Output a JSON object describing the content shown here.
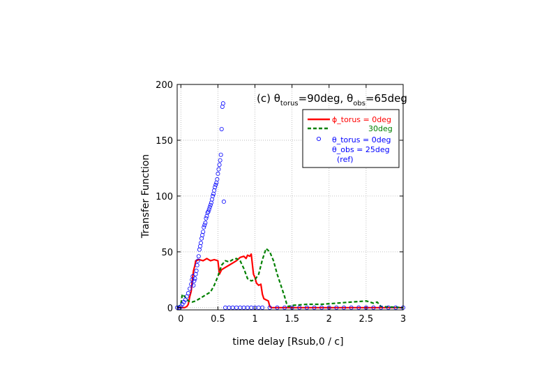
{
  "chart_data": {
    "type": "line",
    "title": {
      "prefix": "(c) ",
      "theta1": "θ",
      "sub1": "torus",
      "mid": "=90deg, ",
      "theta2": "θ",
      "sub2": "obs",
      "suffix": "=65deg"
    },
    "xlabel": "time delay [Rsub,0 / c]",
    "ylabel": "Transfer Function",
    "xlim": [
      -0.05,
      3.0
    ],
    "ylim": [
      -2,
      200
    ],
    "xticks": [
      "0",
      "0.5",
      "1",
      "1.5",
      "2",
      "2.5",
      "3"
    ],
    "yticks": [
      "0",
      "50",
      "100",
      "150",
      "200"
    ],
    "grid": true,
    "legend_position": "top-right",
    "legend": [
      {
        "label": "ϕ_torus = 0deg",
        "color": "#ff0000",
        "style": "solid"
      },
      {
        "label": "30deg",
        "color": "#008000",
        "style": "dashed"
      },
      {
        "label": "θ_torus = 0deg",
        "color": "#0000ff",
        "style": "circle"
      },
      {
        "label": "θ_obs = 25deg",
        "color": "#0000ff",
        "style": "text"
      },
      {
        "label": "(ref)",
        "color": "#0000ff",
        "style": "text"
      }
    ],
    "series": [
      {
        "name": "ϕ_torus = 0deg",
        "color": "#ff0000",
        "style": "solid",
        "x": [
          -0.05,
          0.0,
          0.05,
          0.08,
          0.1,
          0.12,
          0.14,
          0.15,
          0.17,
          0.19,
          0.2,
          0.25,
          0.3,
          0.35,
          0.4,
          0.45,
          0.5,
          0.52,
          0.55,
          0.6,
          0.65,
          0.7,
          0.75,
          0.8,
          0.85,
          0.88,
          0.9,
          0.93,
          0.95,
          0.98,
          1.0,
          1.02,
          1.05,
          1.08,
          1.1,
          1.12,
          1.15,
          1.18,
          1.2,
          1.22,
          1.5,
          2.0,
          2.5,
          3.0
        ],
        "y": [
          0,
          0,
          0,
          1,
          3,
          10,
          15,
          22,
          33,
          38,
          42,
          43,
          42,
          44,
          42,
          43,
          42,
          30,
          34,
          36,
          38,
          40,
          42,
          45,
          46,
          44,
          47,
          46,
          48,
          30,
          27,
          22,
          20,
          21,
          12,
          8,
          7,
          6,
          1,
          0,
          0,
          0,
          0,
          0
        ]
      },
      {
        "name": "30deg",
        "color": "#008000",
        "style": "dashed",
        "x": [
          -0.05,
          0.0,
          0.02,
          0.05,
          0.08,
          0.1,
          0.15,
          0.2,
          0.25,
          0.3,
          0.35,
          0.4,
          0.45,
          0.5,
          0.55,
          0.6,
          0.65,
          0.7,
          0.75,
          0.8,
          0.85,
          0.9,
          0.95,
          1.0,
          1.05,
          1.1,
          1.15,
          1.2,
          1.25,
          1.3,
          1.35,
          1.4,
          1.43,
          1.45,
          1.5,
          1.7,
          1.9,
          2.1,
          2.3,
          2.5,
          2.6,
          2.65,
          2.7,
          3.0
        ],
        "y": [
          0,
          3,
          12,
          10,
          8,
          6,
          5,
          6,
          8,
          10,
          12,
          14,
          20,
          28,
          38,
          42,
          41,
          43,
          44,
          42,
          35,
          26,
          24,
          25,
          30,
          43,
          53,
          50,
          42,
          30,
          20,
          10,
          3,
          1,
          2,
          3,
          3,
          4,
          5,
          6,
          4,
          5,
          1,
          0
        ]
      },
      {
        "name": "θ_torus = 0deg",
        "color": "#0000ff",
        "style": "circle",
        "x": [
          -0.05,
          -0.02,
          0.0,
          0.02,
          0.04,
          0.06,
          0.08,
          0.1,
          0.12,
          0.14,
          0.15,
          0.16,
          0.17,
          0.18,
          0.19,
          0.2,
          0.21,
          0.22,
          0.23,
          0.24,
          0.25,
          0.26,
          0.27,
          0.28,
          0.29,
          0.3,
          0.31,
          0.32,
          0.33,
          0.34,
          0.35,
          0.36,
          0.37,
          0.38,
          0.39,
          0.4,
          0.41,
          0.42,
          0.43,
          0.44,
          0.45,
          0.46,
          0.47,
          0.48,
          0.49,
          0.5,
          0.51,
          0.52,
          0.53,
          0.54,
          0.55,
          0.56,
          0.57,
          0.58,
          0.6,
          0.65,
          0.7,
          0.75,
          0.8,
          0.85,
          0.9,
          0.95,
          1.0,
          1.05,
          1.1,
          1.2,
          1.3,
          1.4,
          1.5,
          1.6,
          1.7,
          1.8,
          1.9,
          2.0,
          2.1,
          2.2,
          2.3,
          2.4,
          2.5,
          2.6,
          2.7,
          2.8,
          2.9,
          3.0
        ],
        "y": [
          0,
          0,
          1,
          3,
          5,
          7,
          10,
          13,
          17,
          21,
          25,
          28,
          20,
          24,
          26,
          30,
          33,
          38,
          42,
          46,
          52,
          55,
          58,
          62,
          65,
          68,
          72,
          74,
          76,
          80,
          82,
          85,
          86,
          88,
          90,
          92,
          94,
          97,
          100,
          102,
          105,
          108,
          110,
          112,
          115,
          120,
          124,
          128,
          132,
          137,
          160,
          180,
          183,
          95,
          0,
          0,
          0,
          0,
          0,
          0,
          0,
          0,
          0,
          0,
          0,
          0,
          0,
          0,
          0,
          0,
          0,
          0,
          0,
          0,
          0,
          0,
          0,
          0,
          0,
          0,
          0,
          0,
          0,
          0
        ]
      }
    ]
  }
}
